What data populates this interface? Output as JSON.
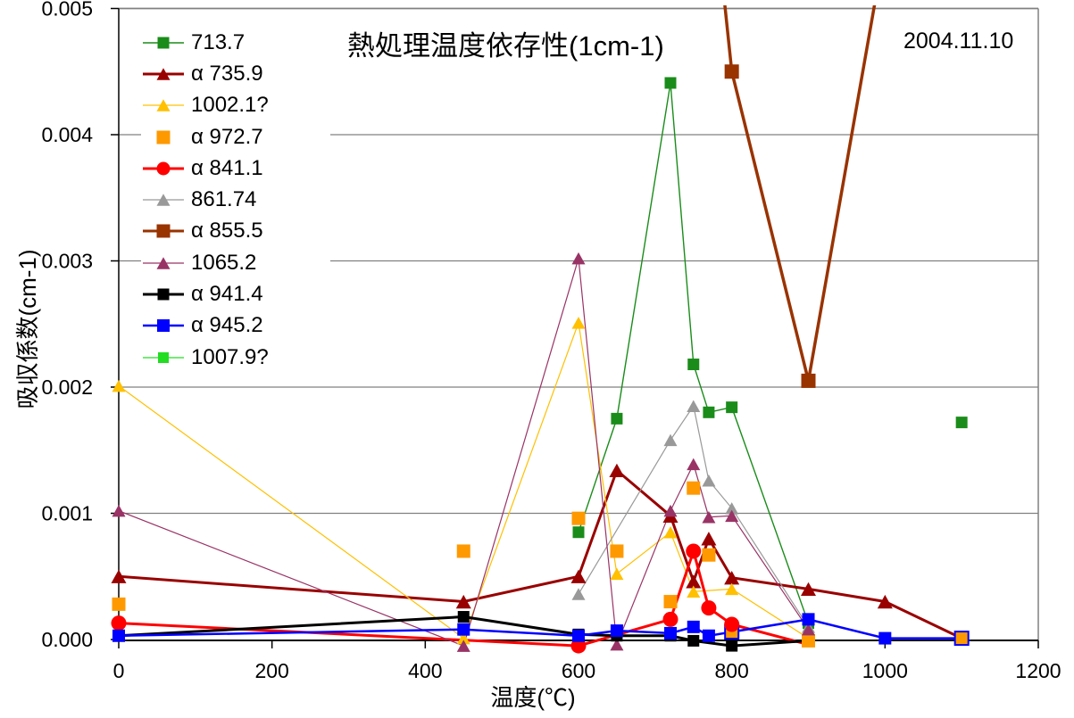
{
  "meta": {
    "date": "2004.11.10"
  },
  "axes": {
    "y_title": "吸収係数(cm-1)",
    "x_title": "温度(℃)",
    "y_ticks": [
      "0.000",
      "0.001",
      "0.002",
      "0.003",
      "0.004",
      "0.005"
    ],
    "x_ticks": [
      "0",
      "200",
      "400",
      "600",
      "800",
      "1000",
      "1200"
    ]
  },
  "colors": {
    "grid": "#808080",
    "axis": "#000000",
    "background": "#ffffff"
  },
  "chart_data": {
    "type": "line",
    "title": "熱処理温度依存性(1cm-1)",
    "xlabel": "温度(℃)",
    "ylabel": "吸収係数(cm-1)",
    "xlim": [
      0,
      1200
    ],
    "ylim": [
      0,
      0.005
    ],
    "x_tick_step": 200,
    "y_tick_step": 0.001,
    "grid": "horizontal",
    "legend_position": "inside-top-left",
    "note": "point format [temperature_C, absorption_coeff, flag] ; flag 0 = marker hidden/off-scale anchor, flag 'b' = blue marker border ; null = line gap",
    "series": [
      {
        "name": "713.7",
        "color": "#1A8C1A",
        "marker": "square",
        "ms": 13,
        "lw": 1.4,
        "points": [
          [
            600,
            0.00085
          ],
          [
            650,
            0.00175
          ],
          [
            720,
            0.00441
          ],
          [
            750,
            0.00218
          ],
          [
            770,
            0.0018
          ],
          [
            800,
            0.00184
          ],
          [
            900,
            0.00013
          ],
          null,
          [
            1100,
            0.00172
          ]
        ]
      },
      {
        "name": "α 735.9",
        "color": "#990000",
        "marker": "triangle",
        "ms": 17,
        "lw": 3,
        "points": [
          [
            0,
            0.0005
          ],
          [
            450,
            0.0003
          ],
          [
            600,
            0.0005
          ],
          [
            650,
            0.00134
          ],
          [
            720,
            0.00098
          ],
          [
            750,
            0.00046
          ],
          [
            770,
            0.0008
          ],
          [
            800,
            0.00049
          ],
          [
            900,
            0.0004
          ],
          [
            1000,
            0.0003
          ],
          [
            1100,
            1e-05,
            0
          ]
        ]
      },
      {
        "name": "1002.1?",
        "color": "#FFC000",
        "marker": "triangle",
        "ms": 15,
        "lw": 1.2,
        "points": [
          [
            0,
            0.00201
          ],
          [
            450,
            1e-05
          ],
          [
            600,
            0.00251
          ],
          [
            650,
            0.00052
          ],
          [
            720,
            0.00085
          ],
          [
            750,
            0.00038
          ],
          [
            800,
            0.0004
          ],
          [
            900,
            1e-05
          ]
        ]
      },
      {
        "name": "α 972.7",
        "color": "#FF9900",
        "marker": "square",
        "ms": 15,
        "lw": 0,
        "points": [
          [
            0,
            0.00028
          ],
          [
            450,
            0.0007
          ],
          [
            600,
            0.00096
          ],
          [
            650,
            0.0007
          ],
          [
            720,
            0.0003
          ],
          [
            750,
            0.0012
          ],
          [
            770,
            0.00067
          ],
          [
            800,
            6e-05,
            "b"
          ],
          [
            900,
            -1e-05
          ],
          [
            1100,
            1e-05,
            "b"
          ]
        ]
      },
      {
        "name": "α 841.1",
        "color": "#FF0000",
        "marker": "circle",
        "ms": 17,
        "lw": 3,
        "points": [
          [
            0,
            0.00013
          ],
          [
            600,
            -5e-05
          ],
          [
            720,
            0.00016
          ],
          [
            750,
            0.0007
          ],
          [
            770,
            0.00025
          ],
          [
            800,
            0.00012
          ],
          [
            900,
            -4e-05,
            0
          ]
        ]
      },
      {
        "name": "861.74",
        "color": "#999999",
        "marker": "triangle",
        "ms": 15,
        "lw": 1.2,
        "points": [
          [
            600,
            0.00036
          ],
          [
            720,
            0.00158
          ],
          [
            750,
            0.00185
          ],
          [
            770,
            0.00126
          ],
          [
            800,
            0.00104
          ],
          [
            900,
            0.0001
          ]
        ]
      },
      {
        "name": "α 855.5",
        "color": "#993300",
        "marker": "square",
        "ms": 16,
        "lw": 3.5,
        "points": [
          [
            750,
            0.0074,
            0
          ],
          [
            800,
            0.0045
          ],
          [
            900,
            0.00205
          ],
          [
            1000,
            0.0055,
            0
          ]
        ]
      },
      {
        "name": "1065.2",
        "color": "#993366",
        "marker": "triangle",
        "ms": 15,
        "lw": 1.2,
        "points": [
          [
            0,
            0.00102
          ],
          [
            450,
            -5e-05
          ],
          [
            600,
            0.00302
          ],
          [
            650,
            -4e-05
          ],
          [
            720,
            0.00102
          ],
          [
            750,
            0.00139
          ],
          [
            770,
            0.00097
          ],
          [
            800,
            0.00098
          ],
          [
            900,
            8e-05
          ]
        ]
      },
      {
        "name": "α 941.4",
        "color": "#000000",
        "marker": "square",
        "ms": 13,
        "lw": 3,
        "points": [
          [
            0,
            3e-05
          ],
          [
            450,
            0.00018
          ],
          [
            600,
            4e-05
          ],
          [
            650,
            3e-05
          ],
          [
            720,
            3e-05
          ],
          [
            750,
            -1e-05
          ],
          [
            800,
            -5e-05
          ],
          [
            900,
            -1e-05,
            0
          ]
        ]
      },
      {
        "name": "α 945.2",
        "color": "#0000FF",
        "marker": "square",
        "ms": 14,
        "lw": 2.5,
        "points": [
          [
            0,
            3e-05
          ],
          [
            450,
            8e-05
          ],
          [
            600,
            3e-05
          ],
          [
            650,
            7e-05
          ],
          [
            720,
            5e-05
          ],
          [
            750,
            0.0001
          ],
          [
            770,
            3e-05
          ],
          [
            800,
            6e-05,
            0
          ],
          [
            900,
            0.00016
          ],
          [
            1000,
            1e-05
          ],
          [
            1100,
            1e-05,
            0
          ]
        ]
      },
      {
        "name": "1007.9?",
        "color": "#22DD22",
        "marker": "square",
        "ms": 12,
        "lw": 1.2,
        "points": []
      }
    ]
  }
}
